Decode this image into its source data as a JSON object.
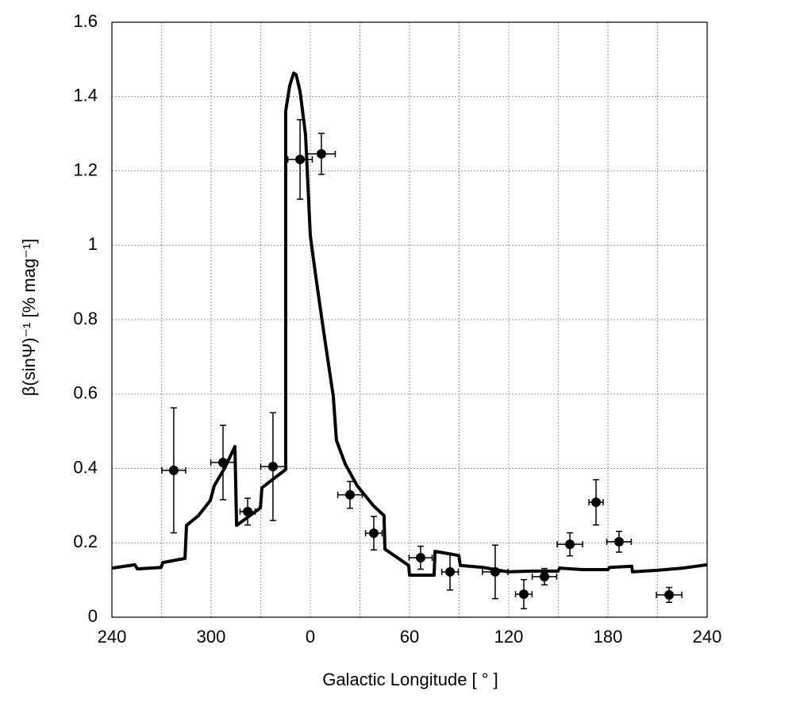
{
  "chart_data": {
    "type": "scatter",
    "x_label": "Galactic Longitude [ ° ]",
    "y_label": "β(sinΨ)⁻¹ [% mag⁻¹]",
    "xlim": [
      -120,
      240
    ],
    "ylim": [
      0,
      1.6
    ],
    "xticks": [
      {
        "value": -120,
        "label": "240"
      },
      {
        "value": -60,
        "label": "300"
      },
      0,
      60,
      120,
      180,
      240
    ],
    "xminorticks": [
      -90,
      -30,
      30,
      90,
      150,
      210
    ],
    "yticks": [
      0,
      0.2,
      0.4,
      0.6,
      0.8,
      1,
      1.2,
      1.4,
      1.6
    ],
    "grid": true,
    "color": "#000000",
    "points": {
      "x": [
        -82.6,
        -52.8,
        -37.9,
        -22.6,
        -6.2,
        6.7,
        24,
        38.4,
        66.7,
        84.5,
        111.8,
        129.1,
        141.6,
        157,
        172.8,
        186.7,
        217
      ],
      "y": [
        0.395,
        0.416,
        0.284,
        0.405,
        1.231,
        1.246,
        0.329,
        0.226,
        0.16,
        0.122,
        0.122,
        0.062,
        0.109,
        0.196,
        0.309,
        0.203,
        0.06
      ],
      "xerr": [
        7.2,
        7.4,
        4.6,
        7.4,
        7.4,
        8.4,
        7.4,
        5,
        7,
        5,
        7.7,
        5,
        7.4,
        7.7,
        4.3,
        7.4,
        7.7
      ],
      "yerr": [
        0.168,
        0.1,
        0.036,
        0.145,
        0.107,
        0.055,
        0.036,
        0.045,
        0.031,
        0.049,
        0.072,
        0.039,
        0.022,
        0.031,
        0.061,
        0.028,
        0.02
      ]
    },
    "curve": {
      "x": [
        -120,
        -106.1,
        -104.6,
        -90.2,
        -89.3,
        -75.8,
        -74.9,
        -67.7,
        -60.5,
        -58.1,
        -51.8,
        -45.6,
        -44.6,
        -30.2,
        -29.3,
        -22.1,
        -14.9,
        -14.9,
        -12.5,
        -10.1,
        -8.6,
        -6.2,
        -2.9,
        0,
        3.4,
        8.2,
        13.9,
        15.8,
        21.1,
        28.3,
        37.9,
        44.6,
        45.1,
        59.5,
        60,
        74.9,
        75.4,
        89.8,
        90.7,
        104.6,
        111.8,
        119.5,
        134.4,
        149.8,
        150.7,
        164.6,
        180,
        181,
        194.4,
        194.9,
        209.8,
        225.1,
        240
      ],
      "y": [
        0.132,
        0.141,
        0.13,
        0.134,
        0.147,
        0.158,
        0.247,
        0.273,
        0.314,
        0.354,
        0.401,
        0.459,
        0.247,
        0.294,
        0.348,
        0.373,
        0.397,
        1.361,
        1.429,
        1.463,
        1.459,
        1.414,
        1.297,
        1.026,
        0.913,
        0.764,
        0.593,
        0.476,
        0.412,
        0.354,
        0.301,
        0.273,
        0.183,
        0.139,
        0.113,
        0.113,
        0.177,
        0.166,
        0.139,
        0.134,
        0.128,
        0.122,
        0.124,
        0.124,
        0.132,
        0.128,
        0.128,
        0.134,
        0.137,
        0.122,
        0.126,
        0.132,
        0.141
      ]
    }
  }
}
